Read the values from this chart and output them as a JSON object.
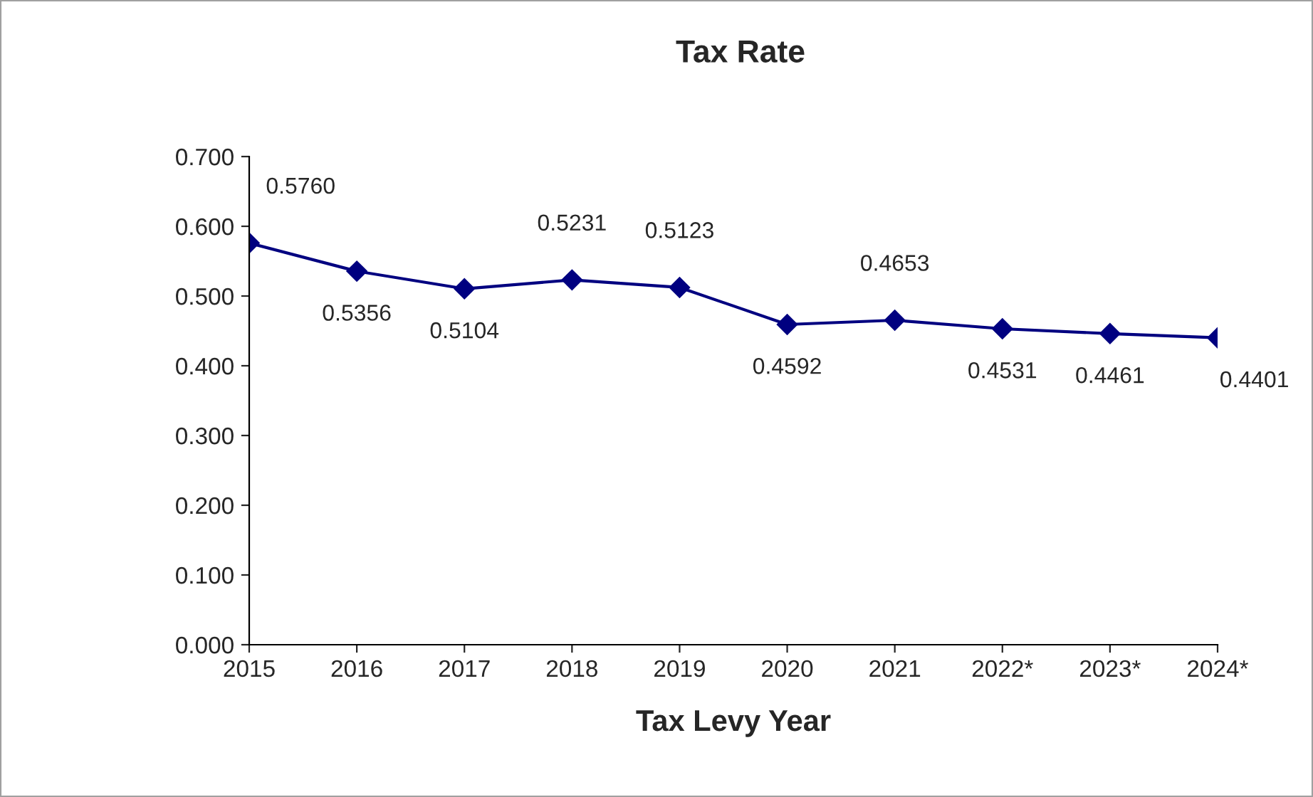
{
  "chart_data": {
    "type": "line",
    "title": "Tax Rate",
    "xlabel": "Tax Levy Year",
    "categories": [
      "2015",
      "2016",
      "2017",
      "2018",
      "2019",
      "2020",
      "2021",
      "2022*",
      "2023*",
      "2024*"
    ],
    "series": [
      {
        "color": "#000080",
        "values": [
          0.576,
          0.5356,
          0.5104,
          0.5231,
          0.5123,
          0.4592,
          0.4653,
          0.4531,
          0.4461,
          0.4401
        ],
        "value_labels": [
          "0.5760",
          "0.5356",
          "0.5104",
          "0.5231",
          "0.5123",
          "0.4592",
          "0.4653",
          "0.4531",
          "0.4461",
          "0.4401"
        ]
      }
    ],
    "ylim": [
      0,
      0.7
    ],
    "yticks": [
      {
        "value": 0,
        "label": "0.000"
      },
      {
        "value": 0.1,
        "label": "0.100"
      },
      {
        "value": 0.2,
        "label": "0.200"
      },
      {
        "value": 0.3,
        "label": "0.300"
      },
      {
        "value": 0.4,
        "label": "0.400"
      },
      {
        "value": 0.5,
        "label": "0.500"
      },
      {
        "value": 0.6,
        "label": "0.600"
      },
      {
        "value": 0.7,
        "label": "0.700"
      }
    ],
    "marker": "diamond",
    "line_style": "solid",
    "grid": false,
    "legend": false
  }
}
